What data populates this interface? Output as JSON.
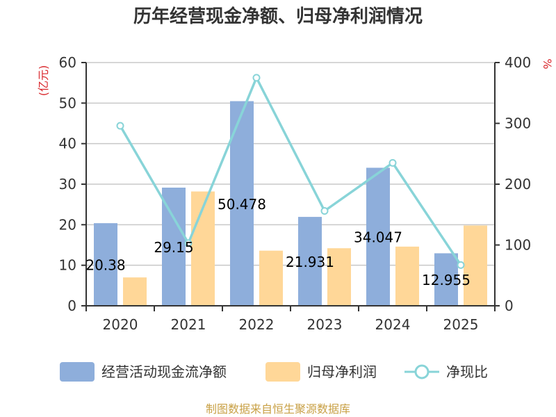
{
  "colors": {
    "bar1": "#8eaedb",
    "bar2": "#ffd798",
    "line": "#88d4d8",
    "unit_label": "#d9262b",
    "source": "#c8a045",
    "grid": "#c8c8c8",
    "axis": "#333333"
  },
  "source": "制图数据来自恒生聚源数据库",
  "chart_data": {
    "type": "bar",
    "title": "历年经营现金净额、归母净利润情况",
    "categories": [
      "2020",
      "2021",
      "2022",
      "2023",
      "2024",
      "2025"
    ],
    "y_left": {
      "label": "(亿元)",
      "ticks": [
        "0",
        "10",
        "20",
        "30",
        "40",
        "50",
        "60"
      ],
      "range": [
        0,
        60
      ]
    },
    "y_right": {
      "label": "%",
      "ticks": [
        "0",
        "100",
        "200",
        "300",
        "400"
      ],
      "range": [
        0,
        400
      ]
    },
    "series": [
      {
        "name": "经营活动现金流净额",
        "type": "bar",
        "axis": "left",
        "values": [
          20.38,
          29.15,
          50.478,
          21.931,
          34.047,
          12.955
        ],
        "labels": [
          "20.38",
          "29.15",
          "50.478",
          "21.931",
          "34.047",
          "12.955"
        ]
      },
      {
        "name": "归母净利润",
        "type": "bar",
        "axis": "left",
        "values": [
          7.0,
          28.2,
          13.6,
          14.2,
          14.6,
          19.8
        ]
      },
      {
        "name": "净现比",
        "type": "line",
        "axis": "right",
        "values": [
          296,
          103,
          375,
          156,
          235,
          67
        ]
      }
    ],
    "legend_position": "bottom",
    "grid": true
  }
}
